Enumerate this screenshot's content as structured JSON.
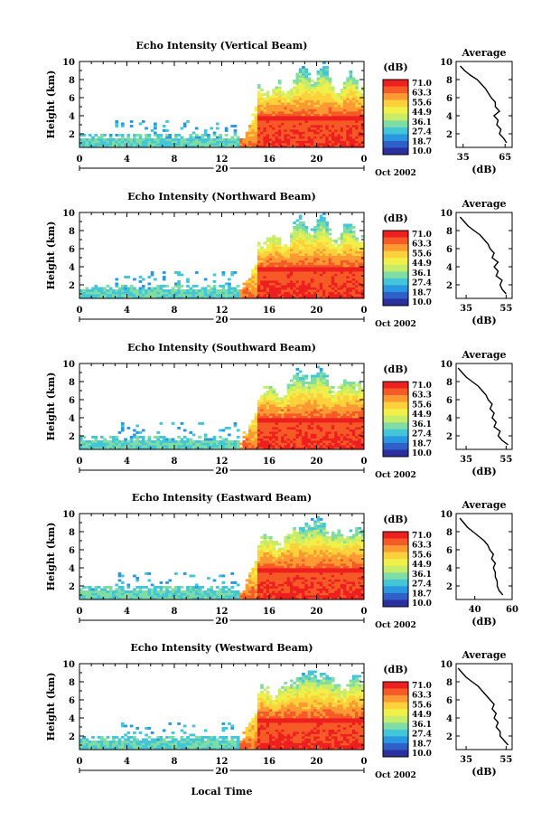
{
  "chart_data": {
    "type": "heatmap",
    "date_label": "Oct 2002",
    "xlabel_bottom": "Local Time",
    "x_ticks": [
      "0",
      "4",
      "8",
      "12",
      "16",
      "20",
      "0"
    ],
    "x_range": [
      0,
      24
    ],
    "day_label": "20",
    "ylabel": "Height (km)",
    "y_ticks": [
      "2",
      "4",
      "6",
      "8",
      "10"
    ],
    "y_range": [
      0.5,
      10
    ],
    "colorbar": {
      "unit": "(dB)",
      "labels": [
        "71.0",
        "63.3",
        "55.6",
        "44.9",
        "36.1",
        "27.4",
        "18.7",
        "10.0"
      ],
      "colors": [
        "#ee1f1f",
        "#f55a27",
        "#fb9a32",
        "#fdd13c",
        "#f1f04a",
        "#c6ec69",
        "#7fdca2",
        "#42c6d8",
        "#2a98e0",
        "#2e60c8",
        "#2c2f9e"
      ]
    },
    "panels": [
      {
        "title": "Echo Intensity (Vertical Beam)",
        "avg_title": "Average",
        "avg_xlabel": "(dB)",
        "avg_x_ticks": [
          "35",
          "65"
        ],
        "avg_x_range": [
          30,
          70
        ],
        "avg_heights": [
          1.0,
          1.5,
          2.0,
          2.5,
          3.0,
          3.5,
          4.0,
          4.5,
          5.0,
          5.5,
          6.0,
          6.5,
          7.0,
          7.5,
          8.0,
          8.5,
          9.0,
          9.5
        ],
        "avg_values": [
          66,
          64,
          61,
          62,
          59,
          60,
          57,
          61,
          58,
          58,
          55,
          53,
          51,
          48,
          45,
          40,
          36,
          33
        ]
      },
      {
        "title": "Echo Intensity (Northward Beam)",
        "avg_title": "Average",
        "avg_xlabel": "(dB)",
        "avg_x_ticks": [
          "35",
          "55"
        ],
        "avg_x_range": [
          30,
          58
        ],
        "avg_heights": [
          1.0,
          1.5,
          2.0,
          2.5,
          3.0,
          3.5,
          4.0,
          4.5,
          5.0,
          5.5,
          6.0,
          6.5,
          7.0,
          7.5,
          8.0,
          8.5,
          9.0,
          9.5
        ],
        "avg_values": [
          55,
          53,
          52,
          53,
          50,
          51,
          49,
          51,
          48,
          49,
          47,
          46,
          44,
          42,
          39,
          36,
          34,
          32
        ]
      },
      {
        "title": "Echo Intensity (Southward Beam)",
        "avg_title": "Average",
        "avg_xlabel": "(dB)",
        "avg_x_ticks": [
          "35",
          "55"
        ],
        "avg_x_range": [
          30,
          58
        ],
        "avg_heights": [
          1.0,
          1.5,
          2.0,
          2.5,
          3.0,
          3.5,
          4.0,
          4.5,
          5.0,
          5.5,
          6.0,
          6.5,
          7.0,
          7.5,
          8.0,
          8.5,
          9.0,
          9.5
        ],
        "avg_values": [
          56,
          53,
          51,
          52,
          49,
          50,
          48,
          49,
          47,
          48,
          46,
          45,
          43,
          41,
          38,
          35,
          33,
          31
        ]
      },
      {
        "title": "Echo Intensity (Eastward Beam)",
        "avg_title": "Average",
        "avg_xlabel": "(dB)",
        "avg_x_ticks": [
          "40",
          "60"
        ],
        "avg_x_range": [
          30,
          60
        ],
        "avg_heights": [
          1.0,
          1.5,
          2.0,
          2.5,
          3.0,
          3.5,
          4.0,
          4.5,
          5.0,
          5.5,
          6.0,
          6.5,
          7.0,
          7.5,
          8.0,
          8.5,
          9.0,
          9.5
        ],
        "avg_values": [
          55,
          53,
          52,
          52,
          51,
          51,
          50,
          51,
          49,
          50,
          48,
          47,
          45,
          42,
          39,
          36,
          34,
          32
        ]
      },
      {
        "title": "Echo Intensity (Westward Beam)",
        "avg_title": "Average",
        "avg_xlabel": "(dB)",
        "avg_x_ticks": [
          "35",
          "55"
        ],
        "avg_x_range": [
          30,
          58
        ],
        "avg_heights": [
          1.0,
          1.5,
          2.0,
          2.5,
          3.0,
          3.5,
          4.0,
          4.5,
          5.0,
          5.5,
          6.0,
          6.5,
          7.0,
          7.5,
          8.0,
          8.5,
          9.0,
          9.5
        ],
        "avg_values": [
          56,
          54,
          52,
          52,
          50,
          51,
          49,
          50,
          48,
          49,
          47,
          45,
          43,
          41,
          38,
          35,
          33,
          31
        ]
      }
    ]
  }
}
